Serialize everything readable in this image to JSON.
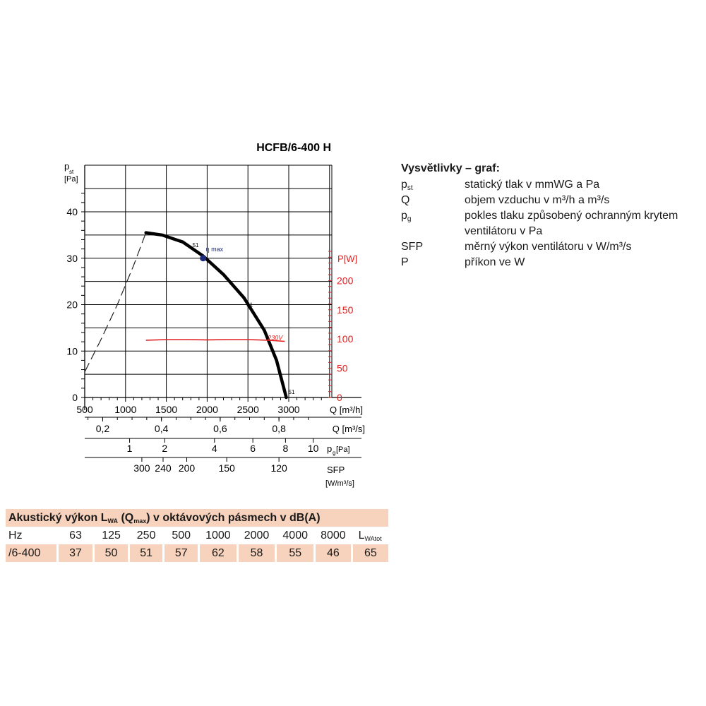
{
  "chart_data": {
    "type": "line",
    "title": "HCFB/6-400 H",
    "y_axis": {
      "label_main": "p",
      "label_sub": "st",
      "unit": "[Pa]",
      "range": [
        0,
        40
      ],
      "ticks": [
        "0",
        "10",
        "20",
        "30",
        "40"
      ]
    },
    "x_axis": {
      "label": "Q [m³/h]",
      "range": [
        500,
        3000
      ],
      "ticks": [
        "500",
        "1000",
        "1500",
        "2000",
        "2500",
        "3000"
      ]
    },
    "power_axis": {
      "label": "P[W]",
      "range": [
        0,
        250
      ],
      "ticks": [
        "0",
        "50",
        "100",
        "150",
        "200"
      ],
      "color": "#e02020"
    },
    "secondary_axes": [
      {
        "label": "Q [m³/s]",
        "ticks": [
          {
            "text": "0,2",
            "q": 720
          },
          {
            "text": "0,4",
            "q": 1440
          },
          {
            "text": "0,6",
            "q": 2160
          },
          {
            "text": "0,8",
            "q": 2880
          }
        ]
      },
      {
        "label_main": "p",
        "label_sub": "g",
        "unit": "[Pa]",
        "ticks": [
          {
            "text": "1",
            "q": 1050
          },
          {
            "text": "2",
            "q": 1480
          },
          {
            "text": "4",
            "q": 2090
          },
          {
            "text": "6",
            "q": 2560
          },
          {
            "text": "8",
            "q": 2960
          },
          {
            "text": "10",
            "q": 3300
          }
        ]
      },
      {
        "label": "SFP",
        "unit": "[W/m³/s]",
        "ticks": [
          {
            "text": "300",
            "q": 1200
          },
          {
            "text": "240",
            "q": 1460
          },
          {
            "text": "200",
            "q": 1750
          },
          {
            "text": "150",
            "q": 2240
          },
          {
            "text": "120",
            "q": 2880
          }
        ]
      }
    ],
    "series": [
      {
        "style": "dashed",
        "unit": "Pa",
        "points": [
          [
            500,
            5.5
          ],
          [
            700,
            12.5
          ],
          [
            900,
            20
          ],
          [
            1100,
            28.5
          ],
          [
            1250,
            35.5
          ]
        ]
      },
      {
        "style": "solid",
        "unit": "Pa",
        "points": [
          [
            1250,
            35.5
          ],
          [
            1450,
            35
          ],
          [
            1700,
            33.5
          ],
          [
            1950,
            30.5
          ],
          [
            2200,
            26.5
          ],
          [
            2450,
            21.5
          ],
          [
            2700,
            14.5
          ],
          [
            2850,
            8
          ],
          [
            2970,
            0
          ]
        ]
      },
      {
        "name": "230V",
        "axis": "power",
        "color": "#e02020",
        "unit": "W",
        "points": [
          [
            1250,
            98
          ],
          [
            1500,
            99
          ],
          [
            1750,
            99
          ],
          [
            2000,
            98.5
          ],
          [
            2250,
            99
          ],
          [
            2500,
            99
          ],
          [
            2750,
            98
          ],
          [
            2950,
            96
          ]
        ]
      }
    ],
    "annotations": [
      {
        "text": "η max",
        "x": 1950,
        "y": 30
      },
      {
        "text": "51",
        "x": 1950,
        "y": 30
      },
      {
        "text": "51",
        "x": 2500,
        "y": 18
      },
      {
        "text": "51",
        "x": 2970,
        "y": 0
      }
    ],
    "grid": true
  },
  "legend": {
    "title": "Vysvětlivky – graf:",
    "items": [
      {
        "sym": "p",
        "sub": "st",
        "desc": "statický tlak v mmWG a Pa"
      },
      {
        "sym": "Q",
        "sub": "",
        "desc": "objem vzduchu v m³/h a m³/s"
      },
      {
        "sym": "p",
        "sub": "g",
        "desc": "pokles tlaku způsobený ochranným krytem ventilátoru v Pa"
      },
      {
        "sym": "SFP",
        "sub": "",
        "desc": "měrný výkon ventilátoru v W/m³/s"
      },
      {
        "sym": "P",
        "sub": "",
        "desc": "příkon ve W"
      }
    ]
  },
  "acoustic": {
    "title_pre": "Akustický výkon L",
    "title_sub1": "WA",
    "title_mid": " (Q",
    "title_sub2": "max",
    "title_post": ") v oktávových pásmech v dB(A)",
    "header_first": "Hz",
    "bands": [
      "63",
      "125",
      "250",
      "500",
      "1000",
      "2000",
      "4000",
      "8000"
    ],
    "total_main": "L",
    "total_sub": "WAtot",
    "row_label": "/6-400",
    "values": [
      "37",
      "50",
      "51",
      "57",
      "62",
      "58",
      "55",
      "46",
      "65"
    ]
  }
}
